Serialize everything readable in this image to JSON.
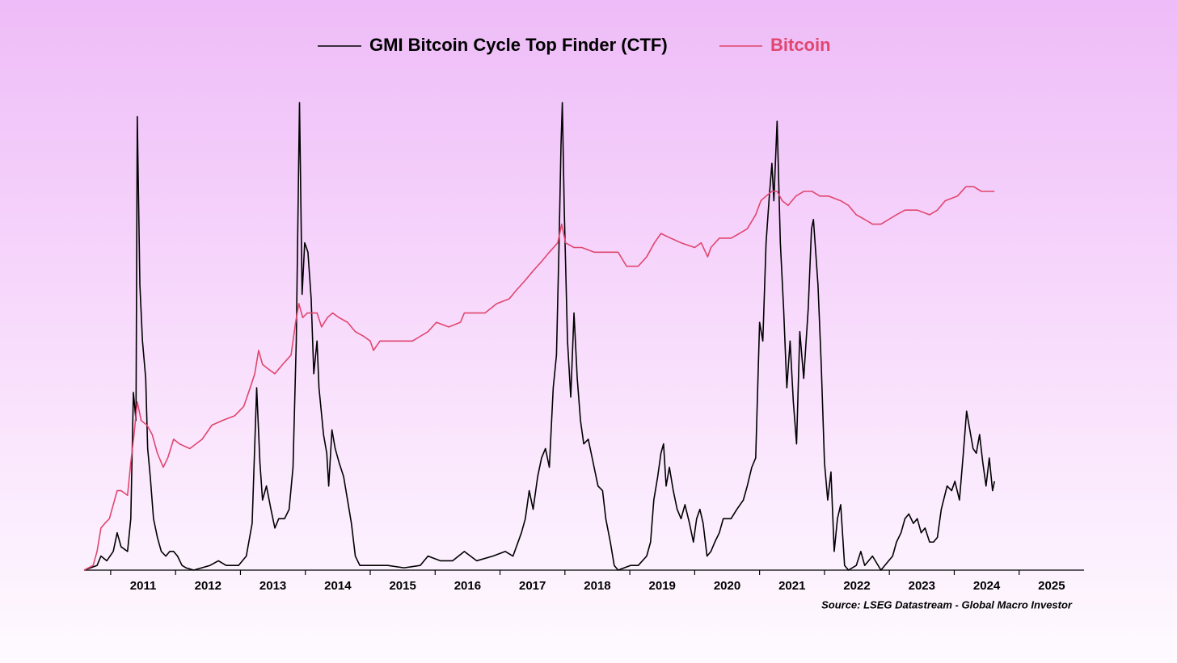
{
  "chart_data": {
    "type": "line",
    "legend": "top",
    "source": "Source: LSEG Datastream - Global Macro Investor",
    "xlim": [
      2010.59,
      2026
    ],
    "ylim": [
      0,
      100
    ],
    "xticks": [
      {
        "value": 2011,
        "label": "2011"
      },
      {
        "value": 2012,
        "label": "2012"
      },
      {
        "value": 2013,
        "label": "2013"
      },
      {
        "value": 2014,
        "label": "2014"
      },
      {
        "value": 2015,
        "label": "2015"
      },
      {
        "value": 2016,
        "label": "2016"
      },
      {
        "value": 2017,
        "label": "2017"
      },
      {
        "value": 2018,
        "label": "2018"
      },
      {
        "value": 2019,
        "label": "2019"
      },
      {
        "value": 2020,
        "label": "2020"
      },
      {
        "value": 2021,
        "label": "2021"
      },
      {
        "value": 2022,
        "label": "2022"
      },
      {
        "value": 2023,
        "label": "2023"
      },
      {
        "value": 2024,
        "label": "2024"
      },
      {
        "value": 2025,
        "label": "2025"
      }
    ],
    "series": [
      {
        "name": "GMI Bitcoin Cycle Top Finder (CTF)",
        "color": "#000000",
        "x": [
          2010.59,
          2010.79,
          2010.85,
          2010.94,
          2011.04,
          2011.1,
          2011.16,
          2011.26,
          2011.31,
          2011.35,
          2011.39,
          2011.41,
          2011.45,
          2011.49,
          2011.54,
          2011.57,
          2011.61,
          2011.66,
          2011.72,
          2011.78,
          2011.85,
          2011.91,
          2011.97,
          2012.03,
          2012.1,
          2012.16,
          2012.28,
          2012.53,
          2012.66,
          2012.78,
          2012.97,
          2013.09,
          2013.18,
          2013.25,
          2013.3,
          2013.34,
          2013.4,
          2013.47,
          2013.53,
          2013.59,
          2013.68,
          2013.75,
          2013.81,
          2013.86,
          2013.91,
          2013.95,
          2013.99,
          2014.04,
          2014.09,
          2014.13,
          2014.18,
          2014.21,
          2014.28,
          2014.33,
          2014.36,
          2014.41,
          2014.46,
          2014.52,
          2014.59,
          2014.65,
          2014.71,
          2014.77,
          2014.84,
          2015.02,
          2015.27,
          2015.52,
          2015.77,
          2015.89,
          2016.08,
          2016.27,
          2016.45,
          2016.64,
          2016.89,
          2017.08,
          2017.2,
          2017.33,
          2017.39,
          2017.45,
          2017.51,
          2017.58,
          2017.64,
          2017.7,
          2017.76,
          2017.82,
          2017.87,
          2017.91,
          2017.94,
          2017.96,
          2017.99,
          2018.04,
          2018.09,
          2018.14,
          2018.19,
          2018.24,
          2018.29,
          2018.36,
          2018.45,
          2018.51,
          2018.58,
          2018.63,
          2018.7,
          2018.76,
          2018.82,
          2019.01,
          2019.13,
          2019.26,
          2019.32,
          2019.37,
          2019.43,
          2019.48,
          2019.52,
          2019.56,
          2019.61,
          2019.67,
          2019.73,
          2019.79,
          2019.85,
          2019.92,
          2019.98,
          2020.03,
          2020.08,
          2020.13,
          2020.19,
          2020.25,
          2020.31,
          2020.38,
          2020.44,
          2020.56,
          2020.65,
          2020.75,
          2020.81,
          2020.88,
          2020.94,
          2021.0,
          2021.05,
          2021.1,
          2021.15,
          2021.19,
          2021.22,
          2021.27,
          2021.32,
          2021.37,
          2021.42,
          2021.47,
          2021.52,
          2021.57,
          2021.62,
          2021.68,
          2021.75,
          2021.8,
          2021.83,
          2021.9,
          2021.95,
          2022.0,
          2022.05,
          2022.1,
          2022.15,
          2022.2,
          2022.25,
          2022.31,
          2022.37,
          2022.49,
          2022.56,
          2022.62,
          2022.74,
          2022.87,
          2022.99,
          2023.05,
          2023.11,
          2023.18,
          2023.24,
          2023.3,
          2023.37,
          2023.43,
          2023.49,
          2023.55,
          2023.62,
          2023.68,
          2023.74,
          2023.8,
          2023.89,
          2023.96,
          2024.01,
          2024.08,
          2024.14,
          2024.19,
          2024.24,
          2024.29,
          2024.34,
          2024.39,
          2024.44,
          2024.49,
          2024.54,
          2024.59,
          2024.62
        ],
        "values": [
          0,
          1,
          3,
          2,
          4,
          8,
          5,
          4,
          11,
          38,
          32,
          97,
          61,
          49,
          41,
          26,
          20,
          11,
          7,
          4,
          3,
          4,
          4,
          3,
          1,
          0.5,
          0,
          1,
          2,
          1,
          1,
          3,
          10,
          39,
          23,
          15,
          18,
          13,
          9,
          11,
          11,
          13,
          22,
          49,
          100,
          59,
          70,
          68,
          58,
          42,
          49,
          39,
          29,
          25,
          18,
          30,
          26,
          23,
          20,
          15,
          10,
          3,
          1,
          1,
          1,
          0.5,
          1,
          3,
          2,
          2,
          4,
          2,
          3,
          4,
          3,
          8,
          11,
          17,
          13,
          20,
          24,
          26,
          22,
          39,
          46,
          70,
          91,
          100,
          77,
          49,
          37,
          55,
          41,
          32,
          27,
          28,
          22,
          18,
          17,
          11,
          6,
          1,
          0,
          1,
          1,
          3,
          6,
          15,
          20,
          25,
          27,
          18,
          22,
          17,
          13,
          11,
          14,
          10,
          6,
          11,
          13,
          10,
          3,
          4,
          6,
          8,
          11,
          11,
          13,
          15,
          18,
          22,
          24,
          53,
          49,
          70,
          80,
          87,
          79,
          96,
          70,
          56,
          39,
          49,
          36,
          27,
          51,
          41,
          56,
          73,
          75,
          61,
          44,
          23,
          15,
          21,
          4,
          11,
          14,
          1,
          0,
          1,
          4,
          1,
          3,
          0,
          2,
          3,
          6,
          8,
          11,
          12,
          10,
          11,
          8,
          9,
          6,
          6,
          7,
          13,
          18,
          17,
          19,
          15,
          25,
          34,
          30,
          26,
          25,
          29,
          23,
          18,
          24,
          17,
          19
        ]
      },
      {
        "name": "Bitcoin",
        "color": "#e0466e",
        "x": [
          2010.59,
          2010.73,
          2010.79,
          2010.85,
          2010.91,
          2010.98,
          2011.04,
          2011.1,
          2011.16,
          2011.26,
          2011.31,
          2011.36,
          2011.41,
          2011.47,
          2011.56,
          2011.64,
          2011.72,
          2011.81,
          2011.88,
          2011.97,
          2012.06,
          2012.22,
          2012.41,
          2012.56,
          2012.72,
          2012.91,
          2013.05,
          2013.15,
          2013.22,
          2013.28,
          2013.34,
          2013.43,
          2013.53,
          2013.65,
          2013.78,
          2013.85,
          2013.9,
          2013.96,
          2014.03,
          2014.09,
          2014.18,
          2014.25,
          2014.34,
          2014.42,
          2014.52,
          2014.65,
          2014.77,
          2014.9,
          2015.0,
          2015.05,
          2015.15,
          2015.27,
          2015.46,
          2015.65,
          2015.77,
          2015.89,
          2016.02,
          2016.21,
          2016.39,
          2016.45,
          2016.58,
          2016.77,
          2016.95,
          2017.14,
          2017.26,
          2017.39,
          2017.51,
          2017.64,
          2017.76,
          2017.89,
          2017.95,
          2018.01,
          2018.14,
          2018.26,
          2018.45,
          2018.63,
          2018.82,
          2018.95,
          2019.13,
          2019.26,
          2019.38,
          2019.48,
          2019.63,
          2019.79,
          2020.0,
          2020.1,
          2020.2,
          2020.25,
          2020.38,
          2020.56,
          2020.69,
          2020.81,
          2020.94,
          2021.02,
          2021.1,
          2021.19,
          2021.27,
          2021.35,
          2021.44,
          2021.56,
          2021.68,
          2021.81,
          2021.93,
          2022.06,
          2022.25,
          2022.37,
          2022.49,
          2022.62,
          2022.74,
          2022.87,
          2022.99,
          2023.11,
          2023.24,
          2023.43,
          2023.62,
          2023.74,
          2023.86,
          2024.05,
          2024.18,
          2024.3,
          2024.42,
          2024.55,
          2024.62
        ],
        "values": [
          0,
          1,
          4,
          9,
          10,
          11,
          14,
          17,
          17,
          16,
          23,
          29,
          36,
          32,
          31,
          29,
          25,
          22,
          24,
          28,
          27,
          26,
          28,
          31,
          32,
          33,
          35,
          39,
          42,
          47,
          44,
          43,
          42,
          44,
          46,
          53,
          57,
          54,
          55,
          55,
          55,
          52,
          54,
          55,
          54,
          53,
          51,
          50,
          49,
          47,
          49,
          49,
          49,
          49,
          50,
          51,
          53,
          52,
          53,
          55,
          55,
          55,
          57,
          58,
          60,
          62,
          64,
          66,
          68,
          70,
          74,
          70,
          69,
          69,
          68,
          68,
          68,
          65,
          65,
          67,
          70,
          72,
          71,
          70,
          69,
          70,
          67,
          69,
          71,
          71,
          72,
          73,
          76,
          79,
          80,
          81,
          81,
          79,
          78,
          80,
          81,
          81,
          80,
          80,
          79,
          78,
          76,
          75,
          74,
          74,
          75,
          76,
          77,
          77,
          76,
          77,
          79,
          80,
          82,
          82,
          81,
          81,
          81
        ]
      }
    ]
  }
}
